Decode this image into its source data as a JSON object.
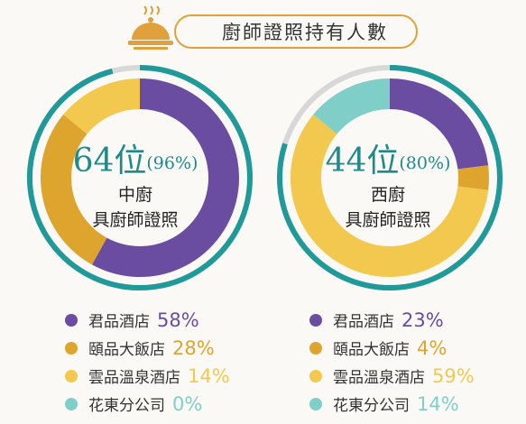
{
  "title": "廚師證照持有人數",
  "colors": {
    "ring": "#1f9a98",
    "ring_empty": "#d8d8d8",
    "accent": "#e0a13a"
  },
  "chart_data": [
    {
      "type": "pie",
      "variant": "donut",
      "center": {
        "count": "64位",
        "percent": "(96%)",
        "line1": "中廚",
        "line2": "具廚師證照"
      },
      "outer_ring_fraction": 0.96,
      "categories": [
        "君品酒店",
        "頤品大飯店",
        "雲品溫泉酒店",
        "花東分公司"
      ],
      "values": [
        58,
        28,
        14,
        0
      ],
      "value_labels": [
        "58%",
        "28%",
        "14%",
        "0%"
      ],
      "colors": [
        "#6a4ca0",
        "#dea52e",
        "#f2c94e",
        "#7fcfc8"
      ]
    },
    {
      "type": "pie",
      "variant": "donut",
      "center": {
        "count": "44位",
        "percent": "(80%)",
        "line1": "西廚",
        "line2": "具廚師證照"
      },
      "outer_ring_fraction": 0.8,
      "categories": [
        "君品酒店",
        "頤品大飯店",
        "雲品溫泉酒店",
        "花東分公司"
      ],
      "values": [
        23,
        4,
        59,
        14
      ],
      "value_labels": [
        "23%",
        "4%",
        "59%",
        "14%"
      ],
      "colors": [
        "#6a4ca0",
        "#dea52e",
        "#f2c94e",
        "#7fcfc8"
      ]
    }
  ]
}
